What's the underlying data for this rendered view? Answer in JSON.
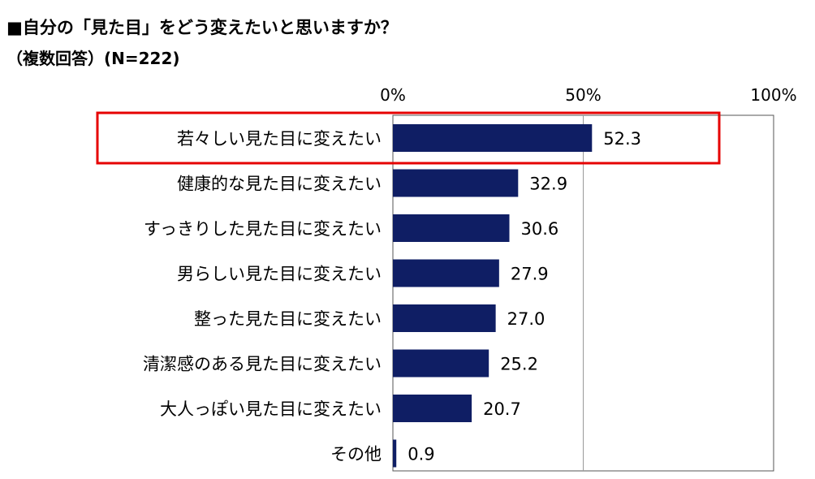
{
  "chart_data": {
    "type": "bar",
    "orientation": "horizontal",
    "title": "■自分の「見た目」をどう変えたいと思いますか？",
    "subtitle": "（複数回答）(N=222)",
    "categories": [
      "若々しい見た目に変えたい",
      "健康的な見た目に変えたい",
      "すっきりした見た目に変えたい",
      "男らしい見た目に変えたい",
      "整った見た目に変えたい",
      "清潔感のある見た目に変えたい",
      "大人っぽい見た目に変えたい",
      "その他"
    ],
    "values": [
      52.3,
      32.9,
      30.6,
      27.9,
      27.0,
      25.2,
      20.7,
      0.9
    ],
    "value_labels": [
      "52.3",
      "32.9",
      "30.6",
      "27.9",
      "27.0",
      "25.2",
      "20.7",
      "0.9"
    ],
    "xlim": [
      0,
      100
    ],
    "ticks": [
      {
        "value": 0,
        "label": "0%"
      },
      {
        "value": 50,
        "label": "50%"
      },
      {
        "value": 100,
        "label": "100%"
      }
    ],
    "bar_color": "#0f1e64",
    "grid": true,
    "highlight_index": 0,
    "highlight_color": "#e60000"
  }
}
